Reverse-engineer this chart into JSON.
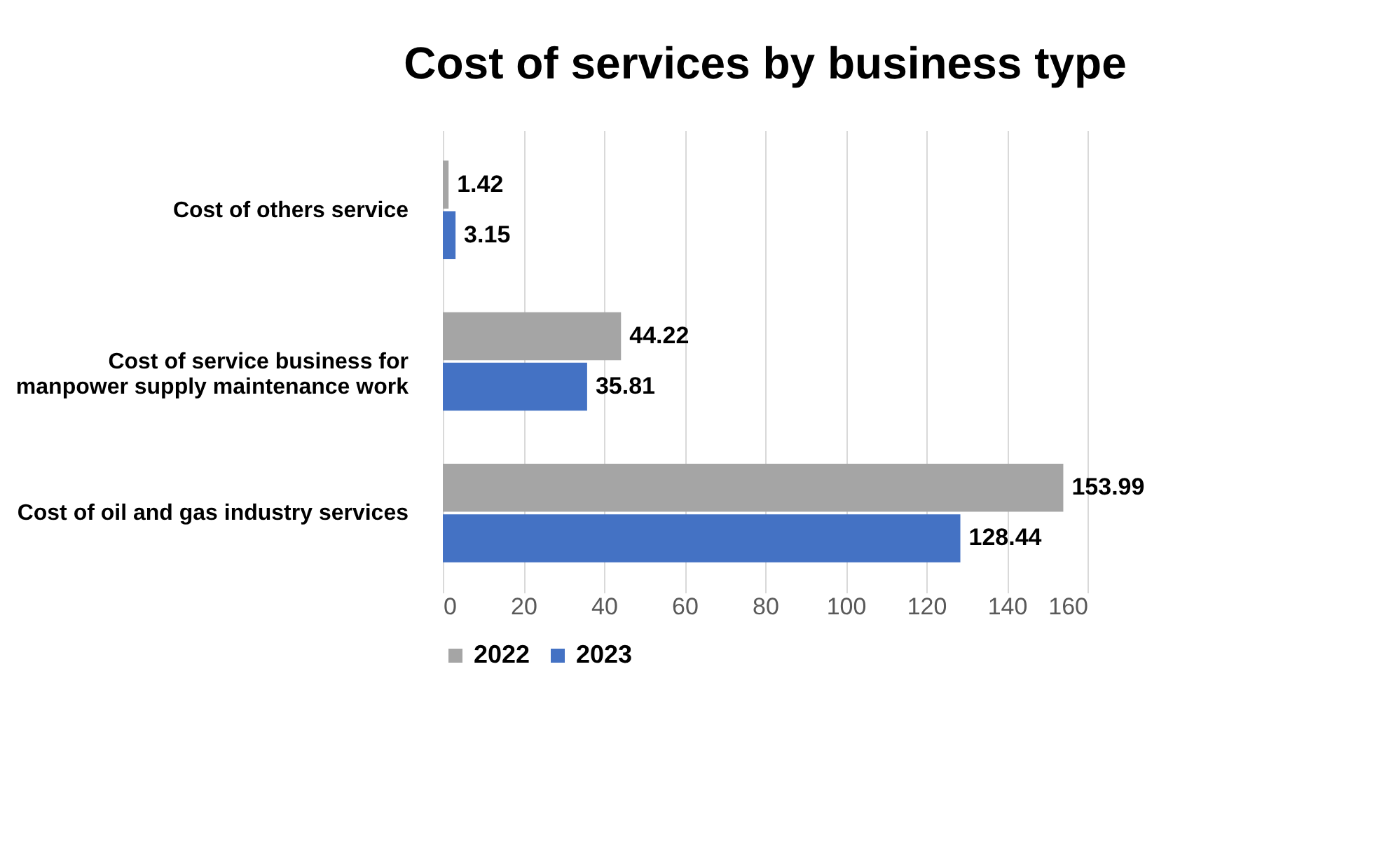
{
  "chart_data": {
    "type": "bar",
    "title": "Cost of services by business type",
    "orientation": "horizontal",
    "categories": [
      "Cost of others service",
      "Cost of service business for manpower supply maintenance work",
      "Cost of oil and gas industry services"
    ],
    "series": [
      {
        "name": "2022",
        "color": "#a5a5a5",
        "values": [
          1.42,
          44.22,
          153.99
        ]
      },
      {
        "name": "2023",
        "color": "#4472c4",
        "values": [
          3.15,
          35.81,
          128.44
        ]
      }
    ],
    "xlim": [
      0,
      160
    ],
    "xticks": [
      0,
      20,
      40,
      60,
      80,
      100,
      120,
      140,
      160
    ],
    "grid": "x",
    "legend": "bottom",
    "data_labels": true
  }
}
